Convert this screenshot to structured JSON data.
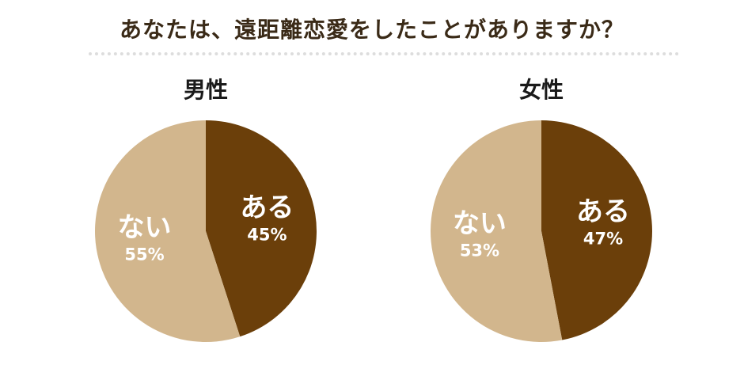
{
  "title": "あなたは、遠距離恋愛をしたことがありますか？",
  "colors": {
    "yes": "#6b3f0a",
    "no": "#d2b68d",
    "title": "#3a2a17"
  },
  "chart_data": [
    {
      "type": "pie",
      "title": "男性",
      "slices": [
        {
          "label": "ある",
          "percent_label": "45%",
          "value": 45,
          "color": "#6b3f0a"
        },
        {
          "label": "ない",
          "percent_label": "55%",
          "value": 55,
          "color": "#d2b68d"
        }
      ]
    },
    {
      "type": "pie",
      "title": "女性",
      "slices": [
        {
          "label": "ある",
          "percent_label": "47%",
          "value": 47,
          "color": "#6b3f0a"
        },
        {
          "label": "ない",
          "percent_label": "53%",
          "value": 53,
          "color": "#d2b68d"
        }
      ]
    }
  ]
}
